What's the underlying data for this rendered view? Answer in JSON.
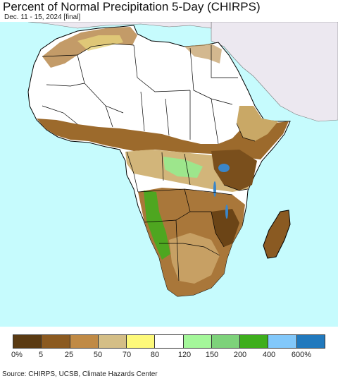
{
  "title": "Percent of Normal Precipitation 5-Day (CHIRPS)",
  "subtitle": "Dec. 11 - 15, 2024 [final]",
  "source": "Source: CHIRPS, UCSB, Climate Hazards Center",
  "legend": {
    "colors": [
      "#5a3a12",
      "#8b5a20",
      "#c08a45",
      "#d4be86",
      "#fdf97a",
      "#ffffff",
      "#a4f79a",
      "#7dd27a",
      "#3eae1c",
      "#82c8fa",
      "#2179bd"
    ],
    "ticks": [
      "0%",
      "5",
      "25",
      "50",
      "70",
      "80",
      "120",
      "150",
      "200",
      "400",
      "600%"
    ]
  },
  "map": {
    "ocean_color": "#c6fbfd",
    "land_outside_color": "#ece8f0",
    "border_color": "#000000"
  }
}
